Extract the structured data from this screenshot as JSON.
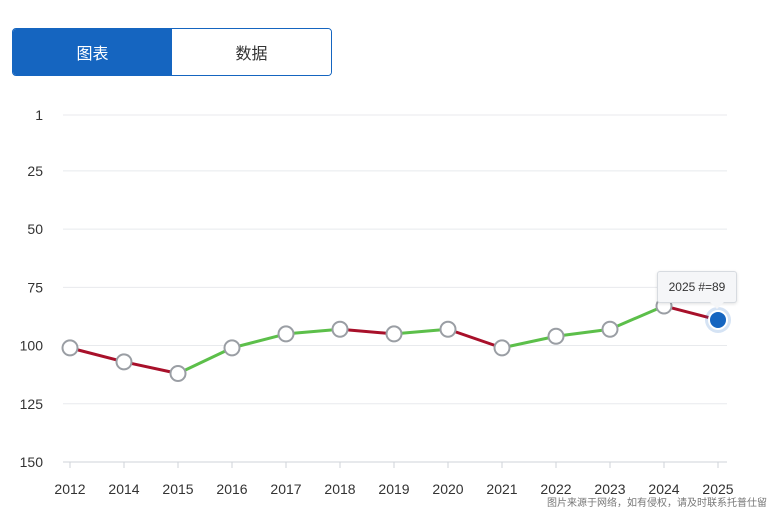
{
  "tabs": [
    {
      "label": "图表",
      "active": true
    },
    {
      "label": "数据",
      "active": false
    }
  ],
  "chart_data": {
    "type": "line",
    "title": "",
    "xlabel": "",
    "ylabel": "",
    "y_reversed": true,
    "ylim": [
      1,
      150
    ],
    "y_ticks": [
      1,
      25,
      50,
      75,
      100,
      125,
      150
    ],
    "grid": true,
    "x": [
      "2012",
      "2014",
      "2015",
      "2016",
      "2017",
      "2018",
      "2019",
      "2020",
      "2021",
      "2022",
      "2023",
      "2024",
      "2025"
    ],
    "values": [
      101,
      107,
      112,
      101,
      95,
      93,
      95,
      93,
      101,
      96,
      93,
      83,
      89
    ],
    "colors": {
      "improving": "#5cbf4a",
      "declining": "#a8102a",
      "highlight": "#1565c0"
    },
    "highlight_index": 12
  },
  "tooltip": {
    "year": "2025",
    "text": "#=89"
  },
  "watermark": "图片来源于网络，如有侵权，请及时联系托普仕留学删除"
}
